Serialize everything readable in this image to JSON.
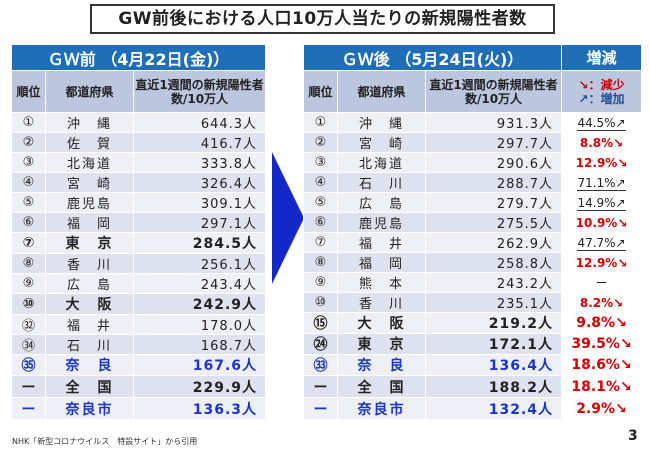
{
  "title": "GW前後における人口10万人当たりの新規陽性者数",
  "left": {
    "header": "ＧＷ前 （4月22日(金)）",
    "col_rank": "順位",
    "col_pref": "都道府県",
    "col_val": "直近1週間の新規陽性者数/10万人",
    "rows": [
      {
        "rank": "①",
        "pref": "沖　縄",
        "val": "644.3人",
        "u": true
      },
      {
        "rank": "②",
        "pref": "佐　賀",
        "val": "416.7人",
        "u": true
      },
      {
        "rank": "③",
        "pref": "北海道",
        "val": "333.8人",
        "u": false
      },
      {
        "rank": "④",
        "pref": "宮　崎",
        "val": "326.4人",
        "u": false
      },
      {
        "rank": "⑤",
        "pref": "鹿児島",
        "val": "309.1人",
        "u": false
      },
      {
        "rank": "⑥",
        "pref": "福　岡",
        "val": "297.1人",
        "u": false
      },
      {
        "rank": "⑦",
        "pref": "東　京",
        "val": "284.5人",
        "u": false,
        "style": "bold"
      },
      {
        "rank": "⑧",
        "pref": "香　川",
        "val": "256.1人",
        "u": false
      },
      {
        "rank": "⑨",
        "pref": "広　島",
        "val": "243.4人",
        "u": true
      },
      {
        "rank": "⑩",
        "pref": "大　阪",
        "val": "242.9人",
        "u": false,
        "style": "bold"
      },
      {
        "rank": "㉜",
        "pref": "福　井",
        "val": "178.0人",
        "u": true
      },
      {
        "rank": "㉞",
        "pref": "石　川",
        "val": "168.7人",
        "u": true
      },
      {
        "rank": "㉟",
        "pref": "奈　良",
        "val": "167.6人",
        "u": false,
        "style": "blue"
      },
      {
        "rank": "ー",
        "pref": "全　国",
        "val": "229.9人",
        "u": false,
        "style": "bold"
      },
      {
        "rank": "ー",
        "pref": "奈良市",
        "val": "136.3人",
        "u": false,
        "style": "blue"
      }
    ]
  },
  "right": {
    "header": "ＧＷ後 （5月24日(火)）",
    "col_rank": "順位",
    "col_pref": "都道府県",
    "col_val": "直近1週間の新規陽性者数/10万人",
    "change_header": "増減",
    "change_legend_down": "↘：減少",
    "change_legend_up": "↗：増加",
    "rows": [
      {
        "rank": "①",
        "pref": "沖　縄",
        "val": "931.3人",
        "u": true,
        "chg": "44.5%↗",
        "dir": "up"
      },
      {
        "rank": "②",
        "pref": "宮　崎",
        "val": "297.7人",
        "u": false,
        "chg": "8.8%↘",
        "dir": "down"
      },
      {
        "rank": "③",
        "pref": "北海道",
        "val": "290.6人",
        "u": false,
        "chg": "12.9%↘",
        "dir": "down"
      },
      {
        "rank": "④",
        "pref": "石　川",
        "val": "288.7人",
        "u": true,
        "chg": "71.1%↗",
        "dir": "up"
      },
      {
        "rank": "⑤",
        "pref": "広　島",
        "val": "279.7人",
        "u": true,
        "chg": "14.9%↗",
        "dir": "up"
      },
      {
        "rank": "⑥",
        "pref": "鹿児島",
        "val": "275.5人",
        "u": false,
        "chg": "10.9%↘",
        "dir": "down"
      },
      {
        "rank": "⑦",
        "pref": "福　井",
        "val": "262.9人",
        "u": true,
        "chg": "47.7%↗",
        "dir": "up"
      },
      {
        "rank": "⑧",
        "pref": "福　岡",
        "val": "258.8人",
        "u": false,
        "chg": "12.9%↘",
        "dir": "down"
      },
      {
        "rank": "⑨",
        "pref": "熊　本",
        "val": "243.2人",
        "u": false,
        "chg": "ー",
        "dir": "none"
      },
      {
        "rank": "⑩",
        "pref": "香　川",
        "val": "235.1人",
        "u": false,
        "chg": "8.2%↘",
        "dir": "down"
      },
      {
        "rank": "⑮",
        "pref": "大　阪",
        "val": "219.2人",
        "u": false,
        "chg": "9.8%↘",
        "dir": "down",
        "style": "bold"
      },
      {
        "rank": "㉔",
        "pref": "東　京",
        "val": "172.1人",
        "u": false,
        "chg": "39.5%↘",
        "dir": "down",
        "style": "bold"
      },
      {
        "rank": "㉝",
        "pref": "奈　良",
        "val": "136.4人",
        "u": false,
        "chg": "18.6%↘",
        "dir": "down",
        "style": "blue"
      },
      {
        "rank": "ー",
        "pref": "全　国",
        "val": "188.2人",
        "u": false,
        "chg": "18.1%↘",
        "dir": "down",
        "style": "bold"
      },
      {
        "rank": "ー",
        "pref": "奈良市",
        "val": "132.4人",
        "u": false,
        "chg": "2.9%↘",
        "dir": "down",
        "style": "blue"
      }
    ]
  },
  "footer": "NHK「新型コロナウイルス　特設サイト」から引用",
  "page_number": "3",
  "colors": {
    "header_blue": "#1e6fb8",
    "down_red": "#d40000",
    "nara_blue": "#1a35c8",
    "arrow_blue": "#1428c8"
  }
}
